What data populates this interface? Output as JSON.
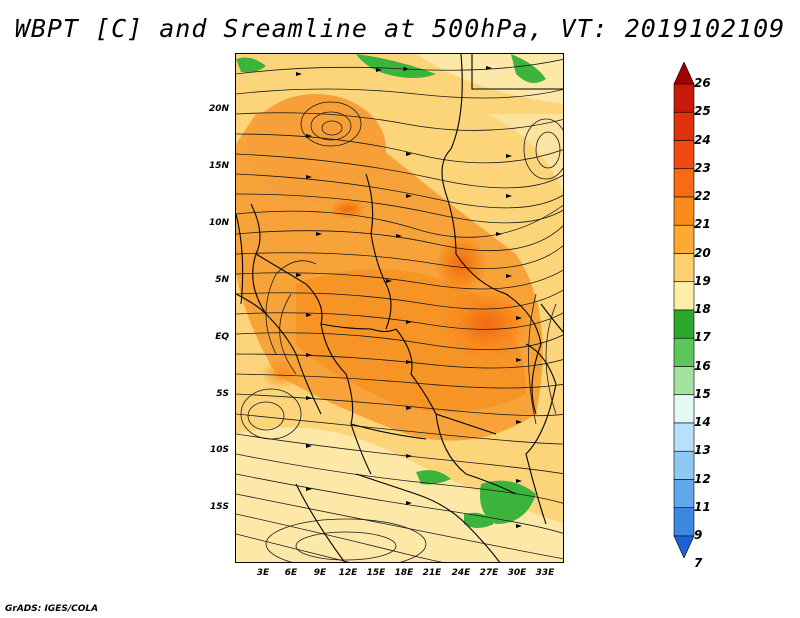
{
  "title": "WBPT [C] and Sreamline at 500hPa, VT: 2019102109",
  "credit": "GrADS: IGES/COLA",
  "map": {
    "lat_labels": [
      "20N",
      "15N",
      "10N",
      "5N",
      "EQ",
      "5S",
      "10S",
      "15S"
    ],
    "lon_labels": [
      "3E",
      "6E",
      "9E",
      "12E",
      "15E",
      "18E",
      "21E",
      "24E",
      "27E",
      "30E",
      "33E"
    ],
    "field": "wet-bulb potential temperature",
    "level": "500hPa",
    "valid_time": "2019102109"
  },
  "colorbar": {
    "labels": [
      "26",
      "25",
      "24",
      "23",
      "22",
      "21",
      "20",
      "19",
      "18",
      "17",
      "16",
      "15",
      "14",
      "13",
      "12",
      "11",
      "9",
      "7"
    ],
    "colors": [
      "#a00000",
      "#c81a0a",
      "#e0300c",
      "#f04a10",
      "#f86a14",
      "#fa8a1a",
      "#fcaa30",
      "#fcd070",
      "#fcf0a8",
      "#2aaa2a",
      "#5cc85c",
      "#a4e2a0",
      "#e4f8f4",
      "#b8e0fc",
      "#90c8f4",
      "#60a8ec",
      "#3c8ae0",
      "#2060d0"
    ]
  }
}
